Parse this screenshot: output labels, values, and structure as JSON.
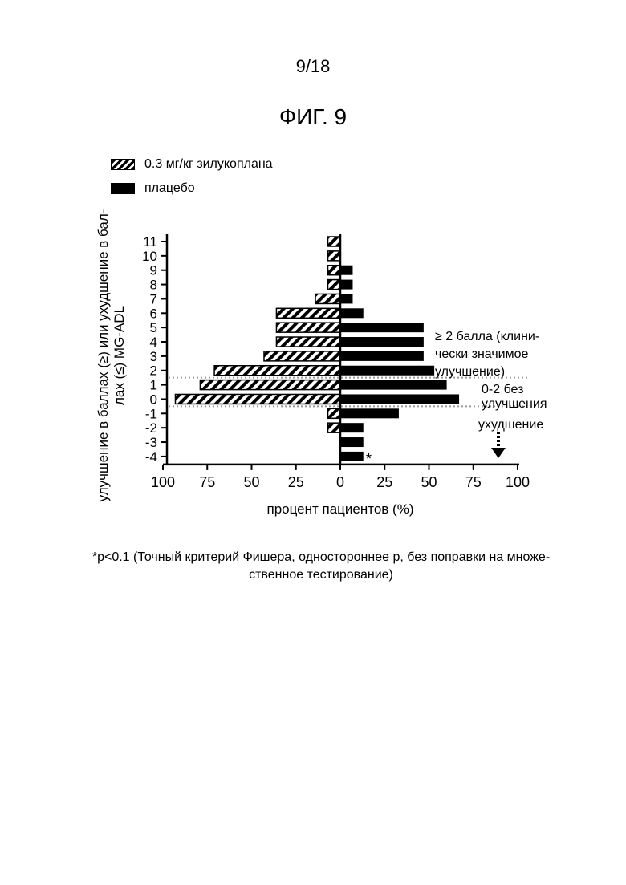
{
  "page_number": "9/18",
  "figure_title": "ФИГ. 9",
  "footnote": {
    "line1": "*p<0.1 (Точный критерий Фишера, одностороннее p, без поправки на множе-",
    "line2": "ственное тестирование)"
  },
  "annotations": {
    "improvement_line1": "≥ 2 балла (клини-",
    "improvement_line2": "чески значимое",
    "improvement_line3": "улучшение)",
    "no_change_line1": "0-2 без",
    "no_change_line2": "улучшения",
    "worsening": "ухудшение",
    "significance_marker": "*"
  },
  "chart_data": {
    "type": "bar",
    "orientation": "horizontal",
    "legend_position": "top-left",
    "xlabel": "процент пациентов (%)",
    "ylabel_line1": "улучшение в баллах (≥) или ухудшение в бал-",
    "ylabel_line2": "лах (≤) MG-ADL",
    "x_ticks": [
      "100",
      "75",
      "50",
      "25",
      "0",
      "25",
      "50",
      "75",
      "100"
    ],
    "categories": [
      "11",
      "10",
      "9",
      "8",
      "7",
      "6",
      "5",
      "4",
      "3",
      "2",
      "1",
      "0",
      "-1",
      "-2",
      "-3",
      "-4"
    ],
    "series": [
      {
        "name": "0.3 мг/кг зилукоплана",
        "pattern": "hatched",
        "direction": "left",
        "values": [
          7,
          7,
          7,
          7,
          14,
          36,
          36,
          36,
          43,
          71,
          79,
          93,
          7,
          7,
          0,
          0
        ]
      },
      {
        "name": "плацебо",
        "pattern": "solid",
        "direction": "right",
        "values": [
          0,
          0,
          7,
          7,
          7,
          13,
          47,
          47,
          47,
          53,
          60,
          67,
          33,
          13,
          13,
          13
        ]
      }
    ],
    "threshold_lines_between": [
      [
        "2",
        "1"
      ],
      [
        "0",
        "-1"
      ]
    ],
    "grid": false,
    "colors": {
      "bars": "#000000",
      "threshold_lines": "#9a9a9a"
    }
  }
}
